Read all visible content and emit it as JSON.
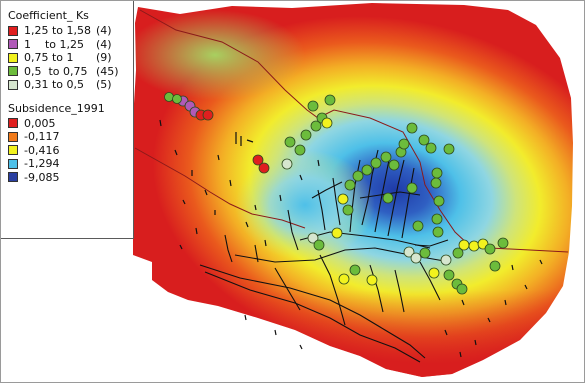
{
  "legend": {
    "coefficient": {
      "title": "Coefficient_ Ks",
      "classes": [
        {
          "label": "1,25 to 1,58",
          "count": "(4)",
          "color": "#e01f1f"
        },
        {
          "label": "1    to 1,25",
          "count": "(4)",
          "color": "#b05ab8"
        },
        {
          "label": "0,75 to 1",
          "count": "(9)",
          "color": "#f2f21e"
        },
        {
          "label": "0,5  to 0,75",
          "count": "(45)",
          "color": "#6cbc3c"
        },
        {
          "label": "0,31 to 0,5",
          "count": "(5)",
          "color": "#d6e6cf"
        }
      ]
    },
    "subsidence": {
      "title": "Subsidence_1991",
      "classes": [
        {
          "label": "0,005",
          "color": "#e01f1f"
        },
        {
          "label": "-0,117",
          "color": "#f07a1a"
        },
        {
          "label": "-0,416",
          "color": "#f2f21e"
        },
        {
          "label": "-1,294",
          "color": "#4ec0e8"
        },
        {
          "label": "-9,085",
          "color": "#2a3fa0"
        }
      ]
    }
  },
  "colors": {
    "boundary": "#8b1a1a",
    "network": "#111111",
    "marker_outline": "#2e4a1e"
  }
}
